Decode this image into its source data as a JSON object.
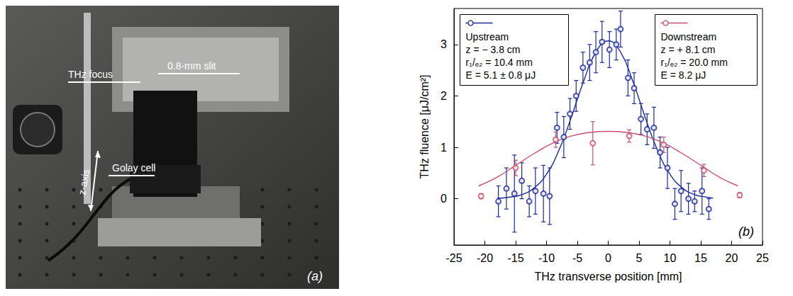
{
  "photo": {
    "labels": [
      "THz focus",
      "0.8-mm slit",
      "z-axis",
      "Golay cell"
    ],
    "letter": "(a)"
  },
  "chart_data": {
    "type": "scatter",
    "letter": "(b)",
    "x_label": "THz transverse position [mm]",
    "y_label": "THz fluence [μJ/cm²]",
    "xlim": [
      -25,
      25
    ],
    "xticks": [
      -25,
      -20,
      -15,
      -10,
      -5,
      0,
      5,
      10,
      15,
      20,
      25
    ],
    "ylim": [
      -0.9,
      3.7
    ],
    "yticks": [
      0,
      1,
      2,
      3
    ],
    "grid": false,
    "marker": "circle",
    "series": [
      {
        "name": "Upstream",
        "color": "#1c2a9c",
        "annotation": [
          "z = − 3.8 cm",
          "r₁/ₑ₂ = 10.4 mm",
          "E = 5.1 ± 0.8 μJ"
        ],
        "x": [
          -17.8,
          -16.5,
          -15.2,
          -14,
          -12.8,
          -11.8,
          -10.5,
          -9.5,
          -8.3,
          -7.2,
          -6.2,
          -5.2,
          -4.1,
          -3,
          -2,
          -1,
          0.2,
          1.3,
          2,
          3.2,
          4.2,
          5.3,
          6.3,
          7.4,
          8.4,
          9.6,
          10.8,
          11.8,
          13,
          14,
          15.2,
          16.3
        ],
        "values": [
          -0.05,
          0.2,
          0.1,
          0.35,
          -0.05,
          0.15,
          0.1,
          0.05,
          1.38,
          1.2,
          1.65,
          2.0,
          2.55,
          2.65,
          2.85,
          3.05,
          2.9,
          3.0,
          3.3,
          2.35,
          2.15,
          1.55,
          1.35,
          1.38,
          0.9,
          0.6,
          -0.1,
          0.15,
          0.0,
          -0.05,
          0.15,
          -0.2
        ],
        "errors": [
          0.3,
          0.4,
          0.75,
          0.35,
          0.3,
          0.45,
          0.55,
          0.55,
          0.3,
          0.4,
          0.3,
          0.3,
          0.3,
          0.35,
          0.4,
          0.4,
          0.35,
          0.3,
          0.35,
          0.35,
          0.3,
          0.3,
          0.3,
          0.4,
          0.3,
          0.4,
          0.3,
          0.4,
          0.3,
          0.2,
          0.45,
          0.2
        ],
        "fit": {
          "line_style": "solid",
          "x": [
            -18,
            -16,
            -14,
            -12,
            -10,
            -8,
            -6,
            -4,
            -2,
            0,
            2,
            4,
            6,
            8,
            10,
            12,
            14,
            16,
            17
          ],
          "values": [
            0.01,
            0.03,
            0.08,
            0.21,
            0.48,
            0.94,
            1.58,
            2.28,
            2.85,
            3.07,
            2.85,
            2.28,
            1.58,
            0.94,
            0.48,
            0.21,
            0.08,
            0.03,
            0.01
          ]
        }
      },
      {
        "name": "Downstream",
        "color": "#c8506e",
        "annotation": [
          "z = + 8.1 cm",
          "r₁/ₑ₂ = 20.0 mm",
          "E = 8.2 μJ"
        ],
        "x": [
          -20.6,
          -15,
          -8.5,
          -2.5,
          3.4,
          9,
          15.5,
          21.3
        ],
        "values": [
          0.05,
          0.6,
          1.15,
          1.08,
          1.22,
          1.05,
          0.55,
          0.07
        ],
        "errors": [
          0.05,
          0.15,
          0.15,
          0.42,
          0.12,
          0.15,
          0.12,
          0.05
        ],
        "fit": {
          "line_style": "solid",
          "x": [
            -21,
            -18,
            -15,
            -12,
            -9,
            -6,
            -3,
            0,
            3,
            6,
            9,
            12,
            15,
            18,
            21
          ],
          "values": [
            0.25,
            0.42,
            0.65,
            0.88,
            1.08,
            1.22,
            1.29,
            1.31,
            1.29,
            1.22,
            1.08,
            0.88,
            0.65,
            0.42,
            0.25
          ]
        }
      }
    ]
  }
}
